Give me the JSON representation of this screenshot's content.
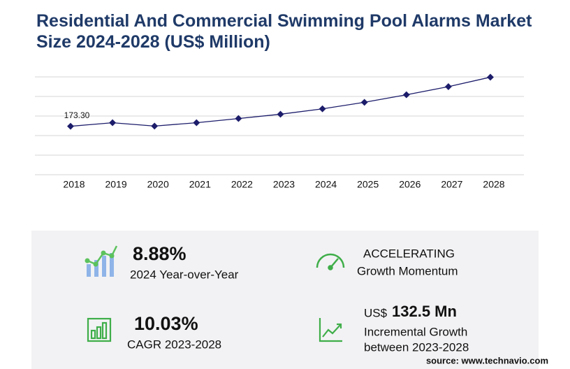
{
  "chart_data": {
    "type": "line",
    "title": "Residential And Commercial Swimming Pool Alarms Market Size 2024-2028 (US$ Million)",
    "categories": [
      "2018",
      "2019",
      "2020",
      "2021",
      "2022",
      "2023",
      "2024",
      "2025",
      "2026",
      "2027",
      "2028"
    ],
    "values": [
      173.3,
      186,
      174,
      186,
      201,
      216.4,
      235.7,
      259,
      286,
      315,
      348.9
    ],
    "value_labels": [
      "173.30",
      null,
      null,
      null,
      null,
      null,
      null,
      null,
      null,
      null,
      null
    ],
    "color": "#1c1c6b",
    "ylim": [
      0,
      350
    ],
    "gridlines": [
      0,
      70,
      140,
      210,
      280,
      350
    ],
    "grid": true
  },
  "stats": [
    {
      "value": "8.88%",
      "label": "2024 Year-over-Year"
    },
    {
      "value": "ACCELERATING",
      "label": "Growth Momentum"
    },
    {
      "value": "10.03%",
      "label": "CAGR 2023-2028"
    },
    {
      "prefix": "US$",
      "value": "132.5 Mn",
      "label": "Incremental Growth",
      "label2": "between 2023-2028"
    }
  ],
  "source": "source: www.technavio.com"
}
